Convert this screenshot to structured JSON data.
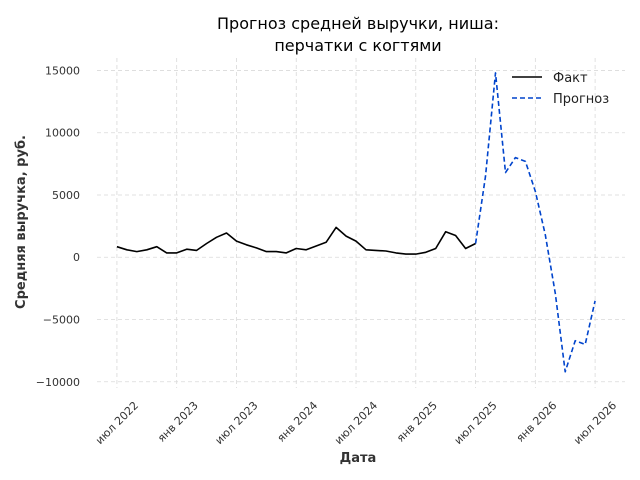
{
  "chart_data": {
    "type": "line",
    "title_lines": [
      "Прогноз средней выручки, ниша:",
      "перчатки с когтями"
    ],
    "xlabel": "Дата",
    "ylabel": "Средняя выручка, руб.",
    "x_ticks": [
      {
        "label": "июл 2022",
        "date": "2022-07"
      },
      {
        "label": "янв 2023",
        "date": "2023-01"
      },
      {
        "label": "июл 2023",
        "date": "2023-07"
      },
      {
        "label": "янв 2024",
        "date": "2024-01"
      },
      {
        "label": "июл 2024",
        "date": "2024-07"
      },
      {
        "label": "янв 2025",
        "date": "2025-01"
      },
      {
        "label": "июл 2025",
        "date": "2025-07"
      },
      {
        "label": "янв 2026",
        "date": "2026-01"
      },
      {
        "label": "июл 2026",
        "date": "2026-07"
      }
    ],
    "y_ticks": [
      {
        "value": -10000,
        "label": "−10000"
      },
      {
        "value": -5000,
        "label": "−5000"
      },
      {
        "value": 0,
        "label": "0"
      },
      {
        "value": 5000,
        "label": "5000"
      },
      {
        "value": 10000,
        "label": "10000"
      },
      {
        "value": 15000,
        "label": "15000"
      }
    ],
    "ylim": [
      -10500,
      16000
    ],
    "xlim": [
      "2022-05",
      "2026-10"
    ],
    "grid": true,
    "legend_position": "top-right",
    "series": [
      {
        "name": "Факт",
        "color": "#000000",
        "style": "solid",
        "x": [
          "2022-07",
          "2022-08",
          "2022-09",
          "2022-10",
          "2022-11",
          "2022-12",
          "2023-01",
          "2023-02",
          "2023-03",
          "2023-04",
          "2023-05",
          "2023-06",
          "2023-07",
          "2023-08",
          "2023-09",
          "2023-10",
          "2023-11",
          "2023-12",
          "2024-01",
          "2024-02",
          "2024-03",
          "2024-04",
          "2024-05",
          "2024-06",
          "2024-07",
          "2024-08",
          "2024-09",
          "2024-10",
          "2024-11",
          "2024-12",
          "2025-01",
          "2025-02",
          "2025-03",
          "2025-04",
          "2025-05",
          "2025-06",
          "2025-07"
        ],
        "values": [
          850,
          600,
          450,
          600,
          850,
          350,
          350,
          650,
          550,
          1100,
          1600,
          1950,
          1300,
          1000,
          750,
          450,
          450,
          350,
          700,
          600,
          900,
          1200,
          2400,
          1700,
          1300,
          600,
          550,
          500,
          350,
          250,
          250,
          400,
          700,
          2050,
          1750,
          700,
          1100
        ]
      },
      {
        "name": "Прогноз",
        "color": "#0044cc",
        "style": "dashed",
        "x": [
          "2025-07",
          "2025-08",
          "2025-09",
          "2025-10",
          "2025-11",
          "2025-12",
          "2026-01",
          "2026-02",
          "2026-03",
          "2026-04",
          "2026-05",
          "2026-06",
          "2026-07"
        ],
        "values": [
          1100,
          6500,
          14800,
          6800,
          8000,
          7700,
          5300,
          1800,
          -2900,
          -9200,
          -6700,
          -7000,
          -3500
        ]
      }
    ]
  }
}
